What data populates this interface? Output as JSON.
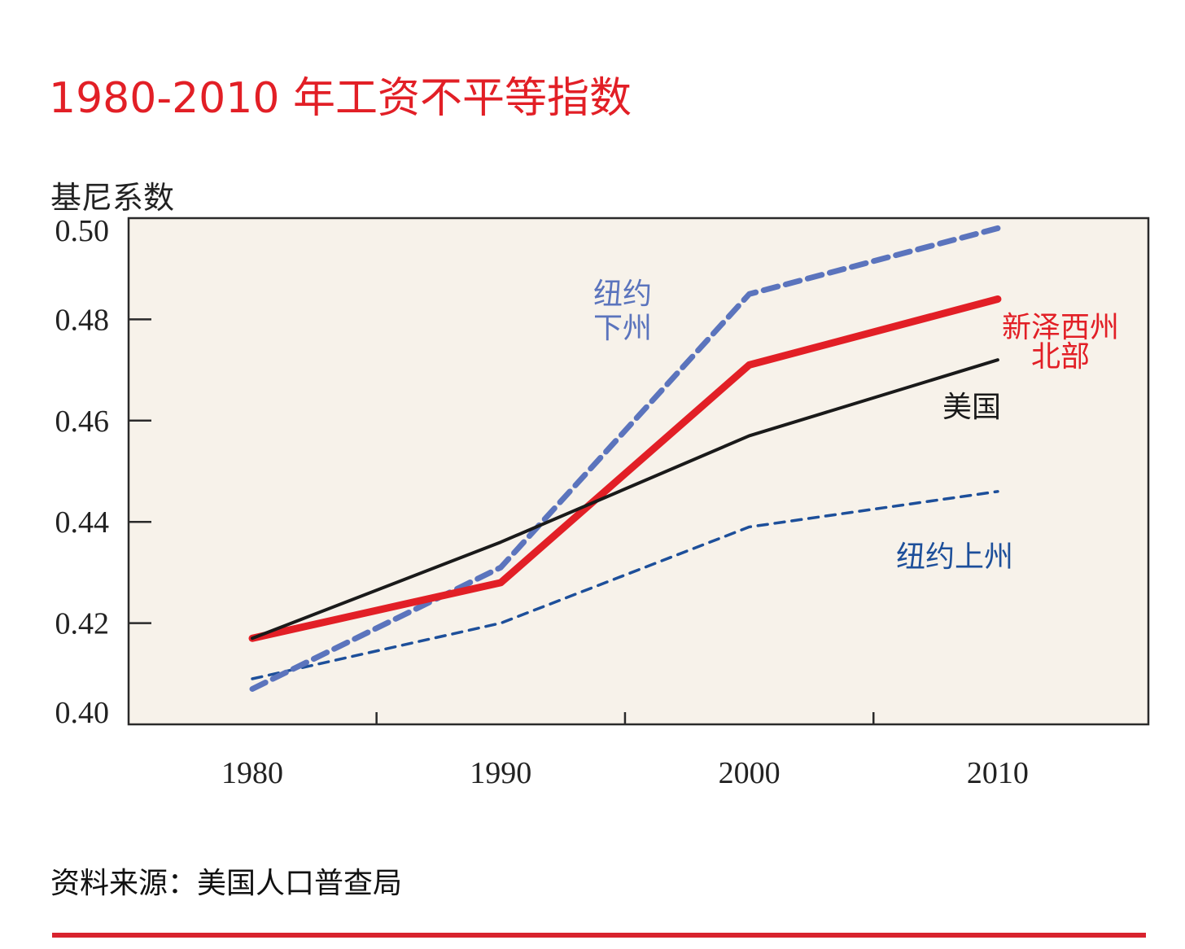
{
  "title": "1980-2010 年工资不平等指数",
  "source": "资料来源：美国人口普查局",
  "colors": {
    "title": "#e21f26",
    "plot_background": "#f7f2ea",
    "nj_north": "#e21f26",
    "us": "#1a1a1a",
    "ny_downstate": "#5b74bd",
    "ny_upstate": "#1d4f9a",
    "rule": "#d8232e"
  },
  "chart_data": {
    "type": "line",
    "title": "1980-2010 年工资不平等指数",
    "xlabel": "",
    "ylabel": "基尼系数",
    "x": [
      1980,
      1990,
      2000,
      2010
    ],
    "x_tick_labels": [
      "1980",
      "1990",
      "2000",
      "2010"
    ],
    "y_tick_labels": [
      "0.50",
      "0.48",
      "0.46",
      "0.44",
      "0.42",
      "0.40"
    ],
    "y_ticks": [
      0.5,
      0.48,
      0.46,
      0.44,
      0.42,
      0.4
    ],
    "ylim": [
      0.4,
      0.5
    ],
    "xlim": [
      1975,
      2016
    ],
    "grid": false,
    "series": [
      {
        "name": "纽约下州",
        "label_lines": [
          "纽约",
          "下州"
        ],
        "style": "dashed-thick",
        "color": "#5b74bd",
        "values": [
          0.407,
          0.431,
          0.485,
          0.498
        ]
      },
      {
        "name": "新泽西州北部",
        "label_lines": [
          "新泽西州",
          "北部"
        ],
        "style": "solid-thick",
        "color": "#e21f26",
        "values": [
          0.417,
          0.428,
          0.471,
          0.484
        ]
      },
      {
        "name": "美国",
        "label_lines": [
          "美国"
        ],
        "style": "solid-thin",
        "color": "#1a1a1a",
        "values": [
          0.417,
          0.436,
          0.457,
          0.472
        ]
      },
      {
        "name": "纽约上州",
        "label_lines": [
          "纽约上州"
        ],
        "style": "dashed-thin",
        "color": "#1d4f9a",
        "values": [
          0.409,
          0.42,
          0.439,
          0.446
        ]
      }
    ]
  }
}
